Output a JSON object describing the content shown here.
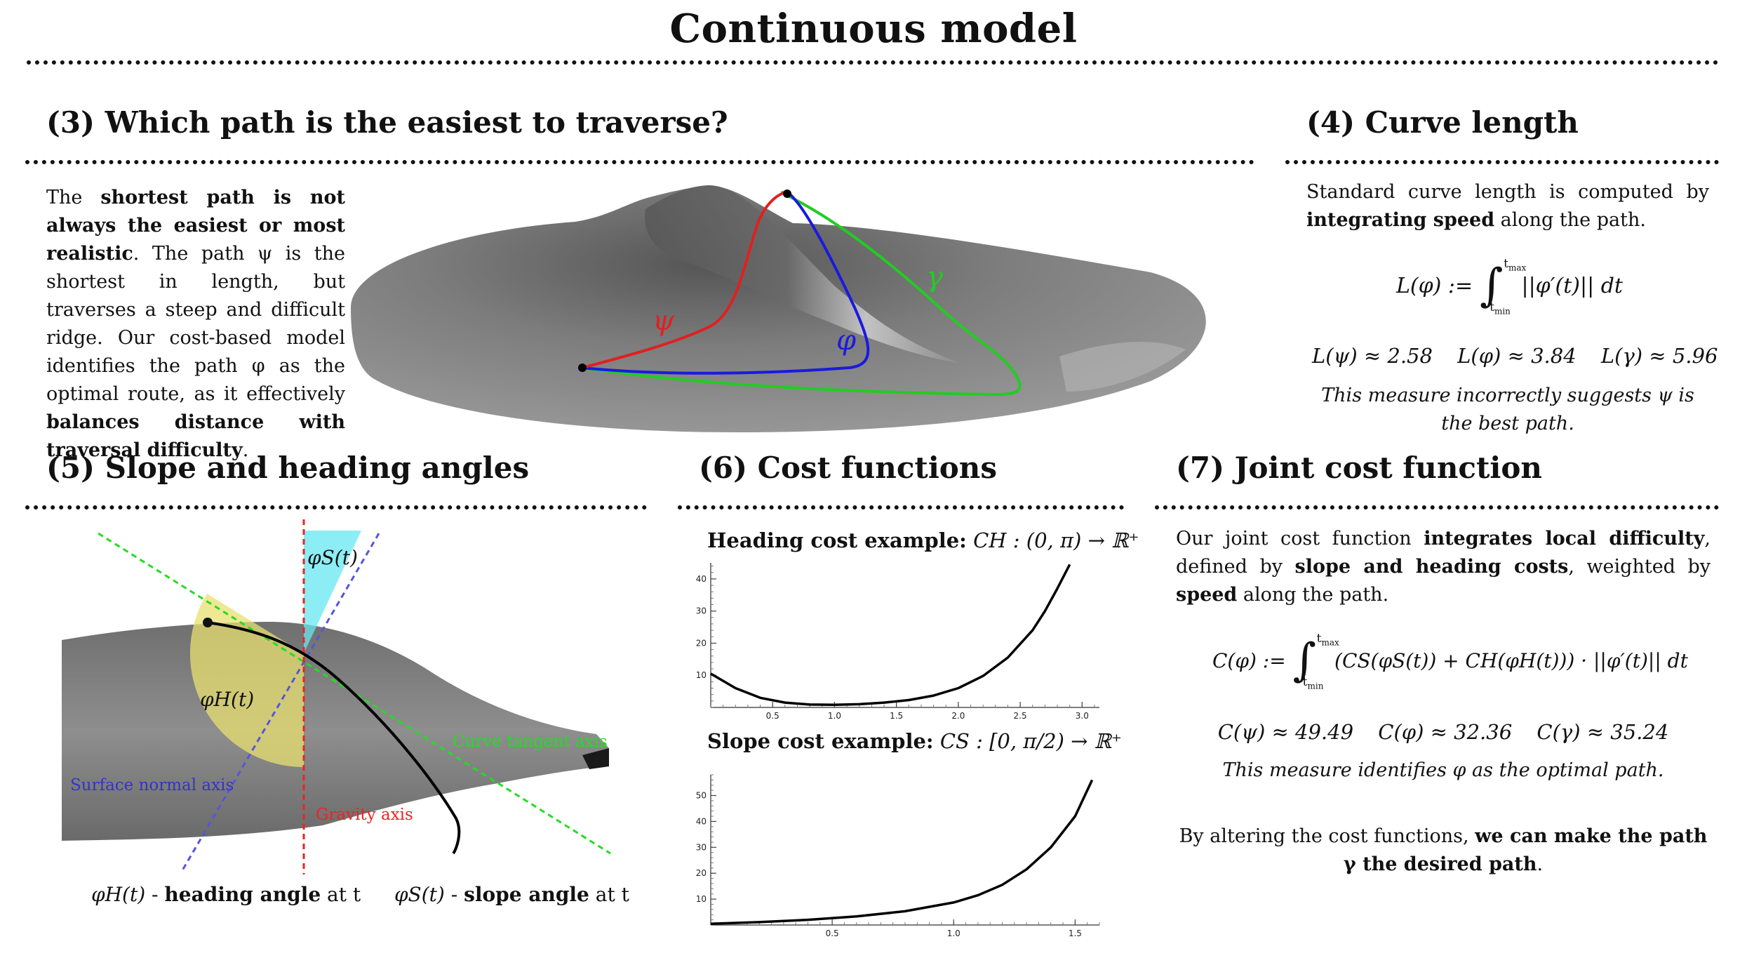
{
  "page_title": "Continuous model",
  "sec3": {
    "heading": "(3) Which path is the easiest to traverse?",
    "p1": "The ",
    "b1": "shortest path is not always the easiest or most realistic",
    "p2": ". The path ψ is the shortest in length, but traverses a steep and difficult ridge. Our cost-based model identifies the path φ as the optimal route, as it effectively ",
    "b2": "balances distance with traversal difficulty",
    "p3": ".",
    "labels": {
      "psi": "ψ",
      "phi": "φ",
      "gamma": "γ"
    },
    "colors": {
      "psi": "#e02020",
      "phi": "#1a1adf",
      "gamma": "#22cc22",
      "surface": "#8a8a8a"
    }
  },
  "sec4": {
    "heading": "(4) Curve length",
    "p1": "Standard curve length is computed by ",
    "b1": "integrating speed",
    "p2": " along the path.",
    "formula_lhs": "L(φ) :=",
    "int_upper": "t",
    "int_upper_sub": "max",
    "int_lower": "t",
    "int_lower_sub": "min",
    "integrand": "||φ′(t)|| dt",
    "values": [
      "L(ψ) ≈ 2.58",
      "L(φ) ≈ 3.84",
      "L(γ) ≈ 5.96"
    ],
    "note": "This measure incorrectly suggests ψ is the best path."
  },
  "sec5": {
    "heading": "(5) Slope and heading angles",
    "label_slope_angle": "φS(t)",
    "label_heading_angle": "φH(t)",
    "label_tangent_axis": "Curve tangent axis",
    "label_normal_axis": "Surface normal axis",
    "label_gravity_axis": "Gravity axis",
    "caption_heading_sym": "φH(t)",
    "caption_heading_dash": " - ",
    "caption_heading_bold": "heading angle",
    "caption_heading_rest": " at t",
    "caption_slope_sym": "φS(t)",
    "caption_slope_dash": " - ",
    "caption_slope_bold": "slope angle",
    "caption_slope_rest": " at t",
    "colors": {
      "tangent": "#22dd22",
      "normal": "#5555dd",
      "gravity": "#ee2222",
      "heading_fill": "#e8e070",
      "slope_fill": "#66e8f0"
    }
  },
  "sec6": {
    "heading": "(6) Cost functions",
    "heading_cost_bold": "Heading cost example:",
    "heading_cost_math": "CH : (0, π) → ℝ⁺",
    "slope_cost_bold": "Slope cost example:",
    "slope_cost_math": "CS : [0, π/2) → ℝ⁺"
  },
  "chart_data": [
    {
      "type": "line",
      "title": "Heading cost example: CH : (0, π) → ℝ⁺",
      "xlabel": "",
      "ylabel": "",
      "xlim": [
        0,
        3.14
      ],
      "ylim": [
        0,
        45
      ],
      "xticks": [
        "0.5",
        "1.0",
        "1.5",
        "2.0",
        "2.5",
        "3.0"
      ],
      "yticks": [
        "10",
        "20",
        "30",
        "40"
      ],
      "series": [
        {
          "x": [
            0.0,
            0.2,
            0.4,
            0.6,
            0.8,
            1.0,
            1.2,
            1.4,
            1.6,
            1.8,
            2.0,
            2.2,
            2.4,
            2.6,
            2.7,
            2.8,
            2.9
          ],
          "values": [
            10.5,
            6.0,
            3.0,
            1.5,
            0.9,
            0.8,
            1.0,
            1.5,
            2.3,
            3.7,
            6.0,
            9.8,
            15.5,
            24.0,
            30.0,
            37.0,
            44.5
          ]
        }
      ]
    },
    {
      "type": "line",
      "title": "Slope cost example: CS : [0, π/2) → ℝ⁺",
      "xlabel": "",
      "ylabel": "",
      "xlim": [
        0,
        1.6
      ],
      "ylim": [
        0,
        58
      ],
      "xticks": [
        "0.5",
        "1.0",
        "1.5"
      ],
      "yticks": [
        "10",
        "20",
        "30",
        "40",
        "50"
      ],
      "series": [
        {
          "x": [
            0.0,
            0.2,
            0.4,
            0.6,
            0.8,
            1.0,
            1.1,
            1.2,
            1.3,
            1.4,
            1.5,
            1.57
          ],
          "values": [
            0.5,
            1.1,
            2.0,
            3.3,
            5.3,
            8.7,
            11.5,
            15.5,
            21.5,
            30.0,
            42.0,
            56.0
          ]
        }
      ]
    }
  ],
  "sec7": {
    "heading": "(7) Joint cost function",
    "p1": "Our joint cost function ",
    "b1": "integrates local difficulty",
    "p2": ", defined by ",
    "b2": "slope and heading costs",
    "p3": ", weighted by ",
    "b3": "speed",
    "p4": " along the path.",
    "formula_lhs": "C(φ) :=",
    "int_upper": "t",
    "int_upper_sub": "max",
    "int_lower": "t",
    "int_lower_sub": "min",
    "integrand": "(CS(φS(t)) + CH(φH(t))) · ||φ′(t)|| dt",
    "values": [
      "C(ψ) ≈ 49.49",
      "C(φ) ≈ 32.36",
      "C(γ) ≈ 35.24"
    ],
    "note": "This measure identifies φ as the optimal path.",
    "final_p1": "By altering the cost functions, ",
    "final_b1": "we can make the path γ the desired path",
    "final_p2": "."
  }
}
